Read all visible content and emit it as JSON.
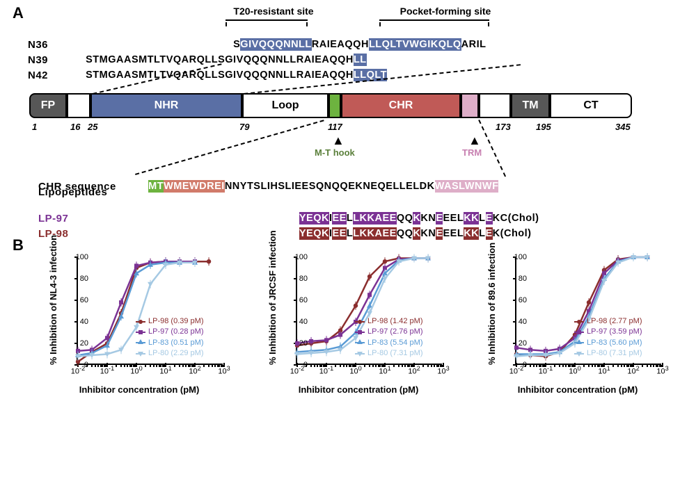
{
  "panelA": "A",
  "panelB": "B",
  "annot1": "T20-resistant site",
  "annot2": "Pocket-forming site",
  "seqLabels": {
    "n36": "N36",
    "n39": "N39",
    "n42": "N42",
    "chr": "CHR sequence",
    "lipo": "Lipopeptides",
    "lp97": "LP-97",
    "lp98": "LP-98"
  },
  "n36": {
    "p1": "S",
    "h1": "GIVQQQNNLL",
    "p2": "RAIEAQQH",
    "h2": "LLQLTVWGIKQLQ",
    "p3": "ARIL"
  },
  "n39": {
    "p1": "STMGAASMTLTVQARQLLSGIVQQQNNLLRAIEAQQH",
    "h1": "LL"
  },
  "n42": {
    "p1": "STMGAASMTLTVQARQLLSGIVQQQNNLLRAIEAQQH",
    "h1": "LLQLT"
  },
  "chr": {
    "h1": "MT",
    "h2": "WMEWDREI",
    "p1": "NNYTSLIHSLIEESQNQQEKNEQELLELDK",
    "h3": "WASLWNWF"
  },
  "lp97": {
    "h1": "YEQK",
    "p1": "I",
    "h2": "EE",
    "p2": "L",
    "h3": "LKKAEE",
    "p3": "QQ",
    "h4": "K",
    "p4": "KN",
    "h5": "E",
    "p5": "EEL",
    "h6": "KK",
    "p6": "L",
    "h7": "E",
    "p7": "KC(Chol)"
  },
  "lp98": {
    "h1": "YEQK",
    "p1": "I",
    "h2": "EE",
    "p2": "L",
    "h3": "LKKAEE",
    "p3": "QQ",
    "h4": "K",
    "p4": "KN",
    "h5": "E",
    "p5": "EEL",
    "h6": "KK",
    "p6": "L",
    "h7": "E",
    "p7": "K(Chol)"
  },
  "domains": {
    "fp": "FP",
    "nhr": "NHR",
    "loop": "Loop",
    "chr": "CHR",
    "tm": "TM",
    "ct": "CT"
  },
  "positions": {
    "p1": "1",
    "p16": "16",
    "p25": "25",
    "p79": "79",
    "p117": "117",
    "p173": "173",
    "p195": "195",
    "p345": "345"
  },
  "arrows": {
    "mt": "M-T hook",
    "trm": "TRM"
  },
  "colors": {
    "lp98": "#8b2e2e",
    "lp97": "#7b3294",
    "lp83": "#5a9bd5",
    "lp80": "#a5c9e3",
    "green": "#5a7f3a",
    "pink": "#c77fb0"
  },
  "charts": {
    "ylabel_fmt": "% Inhibition of {X} infection",
    "xlabel": "Inhibitor concentration (pM)",
    "yticks": [
      0,
      20,
      40,
      60,
      80,
      100
    ],
    "xticks_exp": [
      -2,
      -1,
      0,
      1,
      2,
      3
    ],
    "list": [
      {
        "name": "NL4-3",
        "legend": [
          {
            "label": "LP-98 (0.39 pM)",
            "color": "#8b2e2e",
            "marker": "circle"
          },
          {
            "label": "LP-97 (0.28 pM)",
            "color": "#7b3294",
            "marker": "square"
          },
          {
            "label": "LP-83 (0.51 pM)",
            "color": "#5a9bd5",
            "marker": "triangle"
          },
          {
            "label": "LP-80 (2.29 pM)",
            "color": "#a5c9e3",
            "marker": "triangle-down"
          }
        ],
        "curves": {
          "LP-98": [
            [
              0.01,
              3
            ],
            [
              0.03,
              12
            ],
            [
              0.1,
              20
            ],
            [
              0.3,
              48
            ],
            [
              1,
              90
            ],
            [
              3,
              95
            ],
            [
              10,
              96
            ],
            [
              30,
              96
            ],
            [
              100,
              96
            ],
            [
              300,
              96
            ]
          ],
          "LP-97": [
            [
              0.01,
              13
            ],
            [
              0.03,
              14
            ],
            [
              0.1,
              25
            ],
            [
              0.3,
              58
            ],
            [
              1,
              92
            ],
            [
              3,
              95
            ],
            [
              10,
              96
            ],
            [
              30,
              96
            ],
            [
              100,
              96
            ]
          ],
          "LP-83": [
            [
              0.01,
              9
            ],
            [
              0.03,
              11
            ],
            [
              0.1,
              18
            ],
            [
              0.3,
              45
            ],
            [
              1,
              85
            ],
            [
              3,
              93
            ],
            [
              10,
              95
            ],
            [
              30,
              95
            ],
            [
              100,
              95
            ]
          ],
          "LP-80": [
            [
              0.01,
              8
            ],
            [
              0.03,
              9
            ],
            [
              0.1,
              10
            ],
            [
              0.3,
              14
            ],
            [
              1,
              35
            ],
            [
              3,
              75
            ],
            [
              10,
              93
            ],
            [
              30,
              95
            ],
            [
              100,
              95
            ]
          ]
        }
      },
      {
        "name": "JRCSF",
        "legend": [
          {
            "label": "LP-98 (1.42 pM)",
            "color": "#8b2e2e",
            "marker": "circle"
          },
          {
            "label": "LP-97 (2.76 pM)",
            "color": "#7b3294",
            "marker": "square"
          },
          {
            "label": "LP-83 (5.54 pM)",
            "color": "#5a9bd5",
            "marker": "triangle"
          },
          {
            "label": "LP-80 (7.31 pM)",
            "color": "#a5c9e3",
            "marker": "triangle-down"
          }
        ],
        "curves": {
          "LP-98": [
            [
              0.01,
              18
            ],
            [
              0.03,
              20
            ],
            [
              0.1,
              22
            ],
            [
              0.3,
              32
            ],
            [
              1,
              55
            ],
            [
              3,
              82
            ],
            [
              10,
              96
            ],
            [
              30,
              99
            ],
            [
              100,
              99
            ],
            [
              300,
              99
            ]
          ],
          "LP-97": [
            [
              0.01,
              20
            ],
            [
              0.03,
              22
            ],
            [
              0.1,
              23
            ],
            [
              0.3,
              28
            ],
            [
              1,
              40
            ],
            [
              3,
              65
            ],
            [
              10,
              90
            ],
            [
              30,
              98
            ],
            [
              100,
              99
            ],
            [
              300,
              99
            ]
          ],
          "LP-83": [
            [
              0.01,
              12
            ],
            [
              0.03,
              13
            ],
            [
              0.1,
              14
            ],
            [
              0.3,
              17
            ],
            [
              1,
              30
            ],
            [
              3,
              55
            ],
            [
              10,
              85
            ],
            [
              30,
              97
            ],
            [
              100,
              99
            ],
            [
              300,
              99
            ]
          ],
          "LP-80": [
            [
              0.01,
              10
            ],
            [
              0.03,
              11
            ],
            [
              0.1,
              12
            ],
            [
              0.3,
              14
            ],
            [
              1,
              25
            ],
            [
              3,
              48
            ],
            [
              10,
              80
            ],
            [
              30,
              96
            ],
            [
              100,
              99
            ],
            [
              300,
              99
            ]
          ]
        }
      },
      {
        "name": "89.6",
        "legend": [
          {
            "label": "LP-98 (2.77 pM)",
            "color": "#8b2e2e",
            "marker": "circle"
          },
          {
            "label": "LP-97 (3.59 pM)",
            "color": "#7b3294",
            "marker": "square"
          },
          {
            "label": "LP-83 (5.60 pM)",
            "color": "#5a9bd5",
            "marker": "triangle"
          },
          {
            "label": "LP-80 (7.31 pM)",
            "color": "#a5c9e3",
            "marker": "triangle-down"
          }
        ],
        "curves": {
          "LP-98": [
            [
              0.01,
              10
            ],
            [
              0.03,
              9
            ],
            [
              0.1,
              8
            ],
            [
              0.3,
              12
            ],
            [
              1,
              28
            ],
            [
              3,
              58
            ],
            [
              10,
              88
            ],
            [
              30,
              98
            ],
            [
              100,
              100
            ],
            [
              300,
              100
            ]
          ],
          "LP-97": [
            [
              0.01,
              16
            ],
            [
              0.03,
              14
            ],
            [
              0.1,
              13
            ],
            [
              0.3,
              15
            ],
            [
              1,
              25
            ],
            [
              3,
              50
            ],
            [
              10,
              85
            ],
            [
              30,
              97
            ],
            [
              100,
              100
            ],
            [
              300,
              100
            ]
          ],
          "LP-83": [
            [
              0.01,
              10
            ],
            [
              0.03,
              10
            ],
            [
              0.1,
              10
            ],
            [
              0.3,
              12
            ],
            [
              1,
              22
            ],
            [
              3,
              45
            ],
            [
              10,
              80
            ],
            [
              30,
              96
            ],
            [
              100,
              100
            ],
            [
              300,
              100
            ]
          ],
          "LP-80": [
            [
              0.01,
              8
            ],
            [
              0.03,
              9
            ],
            [
              0.1,
              9
            ],
            [
              0.3,
              11
            ],
            [
              1,
              20
            ],
            [
              3,
              42
            ],
            [
              10,
              78
            ],
            [
              30,
              95
            ],
            [
              100,
              100
            ],
            [
              300,
              100
            ]
          ]
        }
      }
    ]
  }
}
